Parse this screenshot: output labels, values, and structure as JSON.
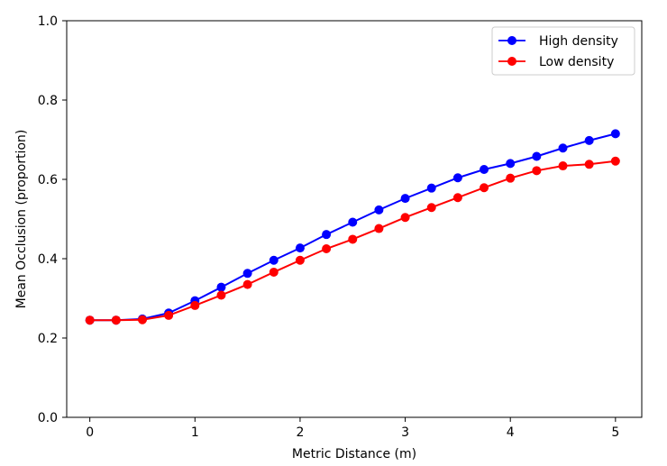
{
  "chart_data": {
    "type": "line",
    "title": "",
    "xlabel": "Metric Distance (m)",
    "ylabel": "Mean Occlusion (proportion)",
    "xlim": [
      -0.22,
      5.25
    ],
    "ylim": [
      0.0,
      1.0
    ],
    "xticks": [
      0,
      1,
      2,
      3,
      4,
      5
    ],
    "xtick_labels": [
      "0",
      "1",
      "2",
      "3",
      "4",
      "5"
    ],
    "yticks": [
      0.0,
      0.2,
      0.4,
      0.6,
      0.8,
      1.0
    ],
    "ytick_labels": [
      "0.0",
      "0.2",
      "0.4",
      "0.6",
      "0.8",
      "1.0"
    ],
    "grid": false,
    "legend_position": "top-right",
    "x": [
      0,
      0.25,
      0.5,
      0.75,
      1.0,
      1.25,
      1.5,
      1.75,
      2.0,
      2.25,
      2.5,
      2.75,
      3.0,
      3.25,
      3.5,
      3.75,
      4.0,
      4.25,
      4.5,
      4.75,
      5.0
    ],
    "series": [
      {
        "name": "High density",
        "color": "#0000ff",
        "values": [
          0.245,
          0.245,
          0.248,
          0.263,
          0.294,
          0.328,
          0.363,
          0.396,
          0.427,
          0.461,
          0.492,
          0.523,
          0.552,
          0.578,
          0.604,
          0.625,
          0.64,
          0.658,
          0.679,
          0.698,
          0.715
        ]
      },
      {
        "name": "Low density",
        "color": "#ff0000",
        "values": [
          0.245,
          0.245,
          0.246,
          0.257,
          0.282,
          0.308,
          0.335,
          0.366,
          0.396,
          0.425,
          0.449,
          0.476,
          0.504,
          0.529,
          0.554,
          0.579,
          0.603,
          0.622,
          0.634,
          0.638,
          0.646
        ]
      }
    ]
  }
}
